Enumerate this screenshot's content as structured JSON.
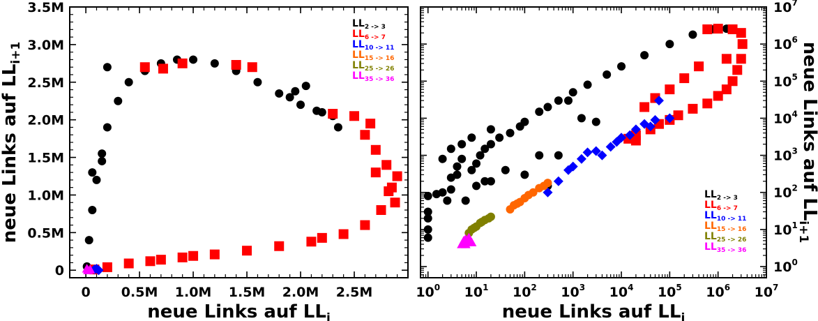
{
  "chart_data": [
    {
      "type": "scatter",
      "xlabel": "neue Links auf LL",
      "xlabel_sub": "i",
      "ylabel": "neue Links auf LL",
      "ylabel_sub": "i+1",
      "xscale": "linear",
      "yscale": "linear",
      "xlim": [
        -150000,
        3000000
      ],
      "ylim": [
        -100000,
        3500000
      ],
      "x_ticks": [
        0,
        500000,
        1000000,
        1500000,
        2000000,
        2500000
      ],
      "x_tick_labels": [
        "0",
        "0.5M",
        "1.0M",
        "1.5M",
        "2.0M",
        "2.5M"
      ],
      "y_ticks": [
        0,
        500000,
        1000000,
        1500000,
        2000000,
        2500000,
        3000000,
        3500000
      ],
      "y_tick_labels": [
        "0",
        "0.5M",
        "1.0M",
        "1.5M",
        "2.0M",
        "2.5M",
        "3.0M",
        "3.5M"
      ],
      "legend_position": "top-right",
      "grid": false,
      "series": [
        {
          "name": "LL",
          "sub": "2 -> 3",
          "color": "#000000",
          "marker": "circle",
          "points": [
            [
              10000,
              50000
            ],
            [
              30000,
              400000
            ],
            [
              60000,
              800000
            ],
            [
              100000,
              1200000
            ],
            [
              150000,
              1550000
            ],
            [
              200000,
              1900000
            ],
            [
              300000,
              2250000
            ],
            [
              400000,
              2500000
            ],
            [
              550000,
              2650000
            ],
            [
              700000,
              2750000
            ],
            [
              850000,
              2800000
            ],
            [
              1000000,
              2800000
            ],
            [
              1200000,
              2750000
            ],
            [
              1400000,
              2650000
            ],
            [
              1600000,
              2500000
            ],
            [
              1800000,
              2350000
            ],
            [
              2000000,
              2200000
            ],
            [
              2200000,
              2100000
            ],
            [
              2300000,
              2050000
            ],
            [
              200000,
              2700000
            ],
            [
              2050000,
              2450000
            ],
            [
              1950000,
              2380000
            ],
            [
              150000,
              1450000
            ],
            [
              60000,
              1300000
            ],
            [
              2350000,
              1900000
            ],
            [
              1900000,
              2300000
            ],
            [
              2150000,
              2120000
            ]
          ]
        },
        {
          "name": "LL",
          "sub": "6 -> 7",
          "color": "#ff0000",
          "marker": "square",
          "points": [
            [
              550000,
              2700000
            ],
            [
              720000,
              2680000
            ],
            [
              900000,
              2750000
            ],
            [
              1400000,
              2730000
            ],
            [
              1550000,
              2700000
            ],
            [
              2300000,
              2080000
            ],
            [
              2500000,
              2050000
            ],
            [
              2600000,
              1800000
            ],
            [
              2700000,
              1600000
            ],
            [
              2800000,
              1400000
            ],
            [
              2850000,
              1100000
            ],
            [
              2750000,
              800000
            ],
            [
              2600000,
              600000
            ],
            [
              2400000,
              480000
            ],
            [
              2100000,
              380000
            ],
            [
              1800000,
              320000
            ],
            [
              1500000,
              260000
            ],
            [
              1200000,
              210000
            ],
            [
              900000,
              170000
            ],
            [
              600000,
              120000
            ],
            [
              400000,
              90000
            ],
            [
              200000,
              40000
            ],
            [
              80000,
              10000
            ],
            [
              2900000,
              1250000
            ],
            [
              2880000,
              900000
            ],
            [
              2700000,
              1300000
            ],
            [
              2820000,
              1050000
            ],
            [
              2200000,
              430000
            ],
            [
              1000000,
              190000
            ],
            [
              700000,
              140000
            ],
            [
              2650000,
              1950000
            ]
          ]
        },
        {
          "name": "LL",
          "sub": "10 -> 11",
          "color": "#0000ff",
          "marker": "diamond",
          "points": [
            [
              100000,
              20000
            ],
            [
              80000,
              10000
            ],
            [
              120000,
              0
            ]
          ]
        },
        {
          "name": "LL",
          "sub": "15 -> 16",
          "color": "#ff6600",
          "marker": "circle",
          "points": []
        },
        {
          "name": "LL",
          "sub": "25 -> 26",
          "color": "#808000",
          "marker": "circle",
          "points": []
        },
        {
          "name": "LL",
          "sub": "35 -> 36",
          "color": "#ff00ff",
          "marker": "triangle",
          "points": [
            [
              20000,
              0
            ],
            [
              10000,
              20000
            ],
            [
              40000,
              10000
            ]
          ]
        }
      ]
    },
    {
      "type": "scatter",
      "xlabel": "neue Links auf LL",
      "xlabel_sub": "i",
      "ylabel": "neue Links auf LL",
      "ylabel_sub": "i+1",
      "xscale": "log",
      "yscale": "log",
      "xlim": [
        0.7,
        10000000
      ],
      "ylim": [
        0.5,
        10000000
      ],
      "x_ticks": [
        1,
        10,
        100,
        1000,
        10000,
        100000,
        1000000,
        10000000
      ],
      "x_tick_labels": [
        [
          "10",
          "0"
        ],
        [
          "10",
          "1"
        ],
        [
          "10",
          "2"
        ],
        [
          "10",
          "3"
        ],
        [
          "10",
          "4"
        ],
        [
          "10",
          "5"
        ],
        [
          "10",
          "6"
        ],
        [
          "10",
          "7"
        ]
      ],
      "y_ticks": [
        1,
        10,
        100,
        1000,
        10000,
        100000,
        1000000,
        10000000
      ],
      "y_tick_labels": [
        [
          "10",
          "0"
        ],
        [
          "10",
          "1"
        ],
        [
          "10",
          "2"
        ],
        [
          "10",
          "3"
        ],
        [
          "10",
          "4"
        ],
        [
          "10",
          "5"
        ],
        [
          "10",
          "6"
        ],
        [
          "10",
          "7"
        ]
      ],
      "ylabel_side": "right",
      "legend_position": "bottom-right",
      "grid": false,
      "series": [
        {
          "name": "LL",
          "sub": "2 -> 3",
          "color": "#000000",
          "marker": "circle",
          "points": [
            [
              1,
              6
            ],
            [
              1,
              10
            ],
            [
              1,
              20
            ],
            [
              1,
              30
            ],
            [
              1,
              80
            ],
            [
              1.5,
              90
            ],
            [
              2,
              100
            ],
            [
              2.5,
              60
            ],
            [
              3,
              120
            ],
            [
              3,
              250
            ],
            [
              4,
              300
            ],
            [
              4,
              500
            ],
            [
              5,
              800
            ],
            [
              6,
              60
            ],
            [
              8,
              400
            ],
            [
              10,
              600
            ],
            [
              12,
              1000
            ],
            [
              15,
              1500
            ],
            [
              20,
              2000
            ],
            [
              30,
              3000
            ],
            [
              50,
              4000
            ],
            [
              80,
              6000
            ],
            [
              100,
              8000
            ],
            [
              200,
              15000
            ],
            [
              300,
              20000
            ],
            [
              500,
              30000
            ],
            [
              1000,
              50000
            ],
            [
              2000,
              80000
            ],
            [
              5000,
              150000
            ],
            [
              10000,
              250000
            ],
            [
              30000,
              500000
            ],
            [
              100000,
              1000000
            ],
            [
              300000,
              1800000
            ],
            [
              800000,
              2500000
            ],
            [
              1500000,
              2600000
            ],
            [
              2,
              800
            ],
            [
              3,
              1500
            ],
            [
              5,
              2000
            ],
            [
              8,
              3000
            ],
            [
              20,
              5000
            ],
            [
              200,
              1000
            ],
            [
              100,
              300
            ],
            [
              20,
              200
            ],
            [
              10,
              150
            ],
            [
              15,
              200
            ],
            [
              40,
              400
            ],
            [
              3000,
              8000
            ],
            [
              1500,
              10000
            ],
            [
              800,
              30000
            ],
            [
              300,
              150
            ],
            [
              500,
              1000
            ]
          ]
        },
        {
          "name": "LL",
          "sub": "6 -> 7",
          "color": "#ff0000",
          "marker": "square",
          "points": [
            [
              600000,
              2500000
            ],
            [
              1000000,
              2600000
            ],
            [
              2000000,
              2500000
            ],
            [
              3000000,
              2000000
            ],
            [
              3200000,
              1000000
            ],
            [
              3000000,
              400000
            ],
            [
              2500000,
              200000
            ],
            [
              2000000,
              100000
            ],
            [
              1500000,
              60000
            ],
            [
              1000000,
              40000
            ],
            [
              600000,
              25000
            ],
            [
              300000,
              18000
            ],
            [
              150000,
              12000
            ],
            [
              100000,
              9000
            ],
            [
              60000,
              7000
            ],
            [
              40000,
              5000
            ],
            [
              20000,
              3500
            ],
            [
              14000,
              2800
            ],
            [
              20000,
              2500
            ],
            [
              30000,
              20000
            ],
            [
              50000,
              35000
            ],
            [
              100000,
              60000
            ],
            [
              200000,
              120000
            ],
            [
              400000,
              250000
            ],
            [
              1500000,
              400000
            ]
          ]
        },
        {
          "name": "LL",
          "sub": "10 -> 11",
          "color": "#0000ff",
          "marker": "diamond",
          "points": [
            [
              300,
              100
            ],
            [
              500,
              200
            ],
            [
              800,
              400
            ],
            [
              1000,
              500
            ],
            [
              1500,
              800
            ],
            [
              2000,
              1200
            ],
            [
              3000,
              1300
            ],
            [
              4000,
              1000
            ],
            [
              6000,
              1700
            ],
            [
              8000,
              2300
            ],
            [
              10000,
              3000
            ],
            [
              15000,
              3500
            ],
            [
              20000,
              5000
            ],
            [
              40000,
              6000
            ],
            [
              50000,
              9000
            ],
            [
              60000,
              30000
            ],
            [
              100000,
              10000
            ],
            [
              30000,
              7000
            ]
          ]
        },
        {
          "name": "LL",
          "sub": "15 -> 16",
          "color": "#ff6600",
          "marker": "circle",
          "points": [
            [
              50,
              35
            ],
            [
              60,
              45
            ],
            [
              80,
              55
            ],
            [
              100,
              70
            ],
            [
              150,
              100
            ],
            [
              200,
              130
            ],
            [
              250,
              150
            ],
            [
              300,
              180
            ],
            [
              70,
              50
            ],
            [
              120,
              85
            ]
          ]
        },
        {
          "name": "LL",
          "sub": "25 -> 26",
          "color": "#808000",
          "marker": "circle",
          "points": [
            [
              7,
              8
            ],
            [
              8,
              10
            ],
            [
              10,
              12
            ],
            [
              12,
              15
            ],
            [
              15,
              18
            ],
            [
              18,
              20
            ],
            [
              20,
              22
            ],
            [
              9,
              11
            ],
            [
              13,
              16
            ]
          ]
        },
        {
          "name": "LL",
          "sub": "35 -> 36",
          "color": "#ff00ff",
          "marker": "triangle",
          "points": [
            [
              5,
              4
            ],
            [
              5.5,
              5
            ],
            [
              6,
              5.5
            ],
            [
              6.5,
              4.5
            ],
            [
              7,
              6
            ],
            [
              7.5,
              5
            ],
            [
              8,
              4.5
            ],
            [
              6,
              4
            ]
          ]
        }
      ]
    }
  ]
}
